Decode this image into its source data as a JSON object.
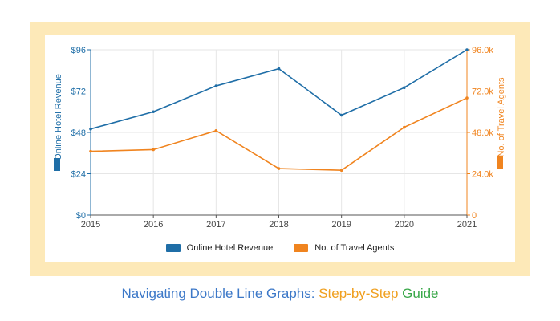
{
  "colors": {
    "revenue": "#1f6ea7",
    "agents": "#f0841f",
    "frame": "#fde9b8",
    "grid": "#e6e6e6",
    "axis": "#555555",
    "title_blue": "#3c78c8",
    "title_orange": "#f0a020",
    "title_green": "#3aa84a"
  },
  "chart_data": {
    "type": "line",
    "x": [
      "2015",
      "2016",
      "2017",
      "2018",
      "2019",
      "2020",
      "2021"
    ],
    "series": [
      {
        "name": "Online Hotel Revenue",
        "axis": "left",
        "values": [
          50,
          60,
          75,
          85,
          58,
          74,
          96
        ]
      },
      {
        "name": "No. of Travel Agents",
        "axis": "right",
        "values": [
          37000,
          38000,
          49000,
          27000,
          26000,
          51000,
          68000
        ]
      }
    ],
    "ylabel_left": "Online Hotel Revenue",
    "ylabel_right": "No. of Travel Agents",
    "ylim_left": [
      0,
      96
    ],
    "ylim_right": [
      0,
      96000
    ],
    "yticks_left": [
      "$0",
      "$24",
      "$48",
      "$72",
      "$96"
    ],
    "yticks_right": [
      "0",
      "24.0k",
      "48.0k",
      "72.0k",
      "96.0k"
    ],
    "grid": true,
    "legend_position": "bottom"
  },
  "caption": {
    "part1": "Navigating Double Line Graphs: ",
    "part2": "Step-by-Step",
    "part3": " Guide"
  }
}
